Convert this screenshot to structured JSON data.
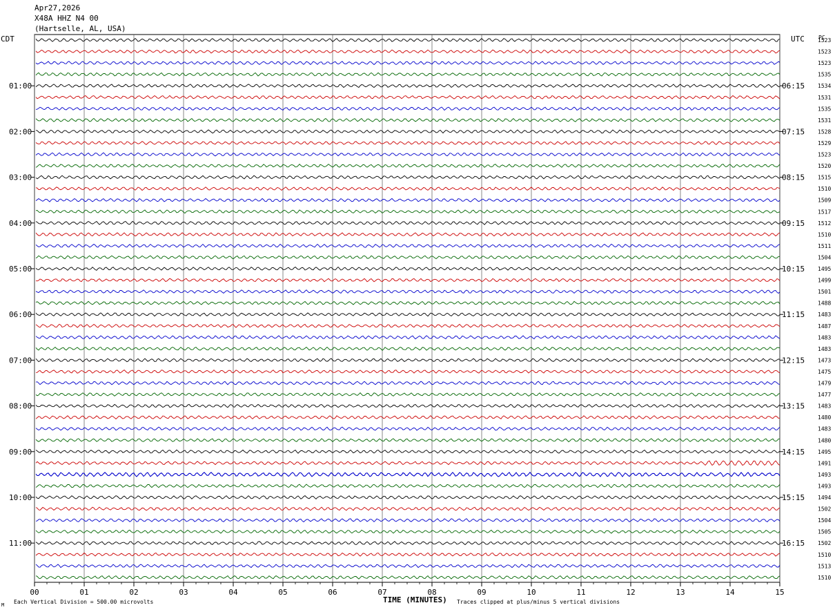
{
  "header": {
    "date": "Apr27,2026",
    "station": "X48A HHZ N4 00",
    "location": "(Hartselle, AL, USA)"
  },
  "chart_data": {
    "type": "line",
    "title": "X48A HHZ N4 00 (Hartselle, AL, USA)",
    "xlabel": "TIME (MINUTES)",
    "x_ticks": [
      "00",
      "01",
      "02",
      "03",
      "04",
      "05",
      "06",
      "07",
      "08",
      "09",
      "10",
      "11",
      "12",
      "13",
      "14",
      "15"
    ],
    "xlim": [
      0,
      15
    ],
    "left_axis_title": "CDT",
    "right_axis_title": "UTC",
    "pc_title": "PC",
    "left_hour_labels": [
      "01:00",
      "02:00",
      "03:00",
      "04:00",
      "05:00",
      "06:00",
      "07:00",
      "08:00",
      "09:00",
      "10:00",
      "11:00"
    ],
    "right_hour_labels": [
      "06:15",
      "07:15",
      "08:15",
      "09:15",
      "10:15",
      "11:15",
      "12:15",
      "13:15",
      "14:15",
      "15:15",
      "16:15"
    ],
    "trace_colors": [
      "#000000",
      "#cc0000",
      "#0000cc",
      "#006600"
    ],
    "trace_count": 48,
    "pc_values": [
      "1523",
      "1523",
      "1523",
      "1535",
      "1534",
      "1531",
      "1535",
      "1531",
      "1528",
      "1529",
      "1523",
      "1520",
      "1515",
      "1510",
      "1509",
      "1517",
      "1512",
      "1510",
      "1511",
      "1504",
      "1495",
      "1499",
      "1501",
      "1488",
      "1483",
      "1487",
      "1483",
      "1483",
      "1473",
      "1475",
      "1479",
      "1477",
      "1483",
      "1480",
      "1483",
      "1480",
      "1495",
      "1491",
      "1493",
      "1493",
      "1494",
      "1502",
      "1504",
      "1505",
      "1502",
      "1510",
      "1513",
      "1510"
    ],
    "grid": true
  },
  "footer": {
    "scale_note": "Each Vertical Division =  500.00 microvolts",
    "clip_note": "Traces clipped at plus/minus 5 vertical divisions",
    "mark": "M"
  }
}
